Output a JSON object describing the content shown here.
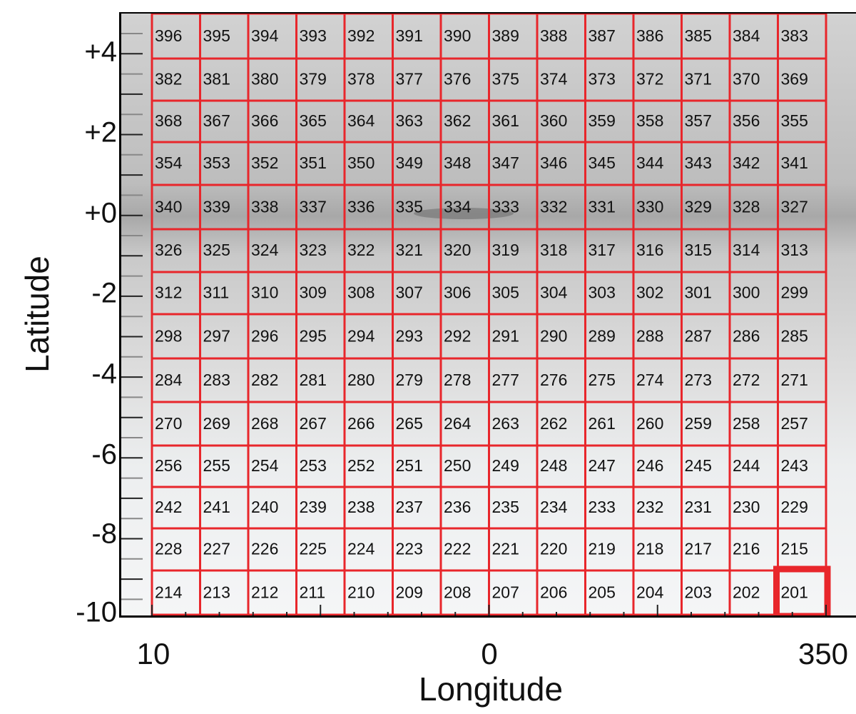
{
  "chart_data": {
    "type": "heatmap",
    "title": "",
    "xlabel": "Longitude",
    "ylabel": "Latitude",
    "x_ticks": [
      "10",
      "0",
      "350"
    ],
    "y_ticks": [
      "+4",
      "+2",
      "+0",
      "-2",
      "-4",
      "-6",
      "-8",
      "-10"
    ],
    "y_tick_values": [
      4,
      2,
      0,
      -2,
      -4,
      -6,
      -8,
      -10
    ],
    "xlim": [
      10,
      350
    ],
    "ylim": [
      -10,
      5
    ],
    "grid": {
      "columns": 14,
      "rows": 14
    },
    "cells": [
      [
        396,
        395,
        394,
        393,
        392,
        391,
        390,
        389,
        388,
        387,
        386,
        385,
        384,
        383
      ],
      [
        382,
        381,
        380,
        379,
        378,
        377,
        376,
        375,
        374,
        373,
        372,
        371,
        370,
        369
      ],
      [
        368,
        367,
        366,
        365,
        364,
        363,
        362,
        361,
        360,
        359,
        358,
        357,
        356,
        355
      ],
      [
        354,
        353,
        352,
        351,
        350,
        349,
        348,
        347,
        346,
        345,
        344,
        343,
        342,
        341
      ],
      [
        340,
        339,
        338,
        337,
        336,
        335,
        334,
        333,
        332,
        331,
        330,
        329,
        328,
        327
      ],
      [
        326,
        325,
        324,
        323,
        322,
        321,
        320,
        319,
        318,
        317,
        316,
        315,
        314,
        313
      ],
      [
        312,
        311,
        310,
        309,
        308,
        307,
        306,
        305,
        304,
        303,
        302,
        301,
        300,
        299
      ],
      [
        298,
        297,
        296,
        295,
        294,
        293,
        292,
        291,
        290,
        289,
        288,
        287,
        286,
        285
      ],
      [
        284,
        283,
        282,
        281,
        280,
        279,
        278,
        277,
        276,
        275,
        274,
        273,
        272,
        271
      ],
      [
        270,
        269,
        268,
        267,
        266,
        265,
        264,
        263,
        262,
        261,
        260,
        259,
        258,
        257
      ],
      [
        256,
        255,
        254,
        253,
        252,
        251,
        250,
        249,
        248,
        247,
        246,
        245,
        244,
        243
      ],
      [
        242,
        241,
        240,
        239,
        238,
        237,
        236,
        235,
        234,
        233,
        232,
        231,
        230,
        229
      ],
      [
        228,
        227,
        226,
        225,
        224,
        223,
        222,
        221,
        220,
        219,
        218,
        217,
        216,
        215
      ],
      [
        214,
        213,
        212,
        211,
        210,
        209,
        208,
        207,
        206,
        205,
        204,
        203,
        202,
        201
      ]
    ],
    "highlighted_cell": 201,
    "colors": {
      "grid": "#e8262b",
      "highlight": "#e8262b",
      "background_dark": "#9a9a9a",
      "background_light": "#f5f6f7"
    }
  }
}
